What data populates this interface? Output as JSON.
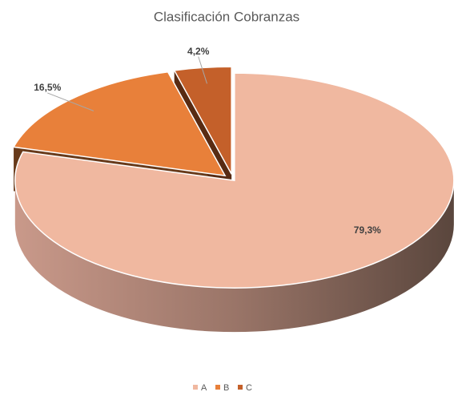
{
  "chart_data": {
    "type": "pie3d",
    "title": "Clasificación Cobranzas",
    "categories": [
      "A",
      "B",
      "C"
    ],
    "values": [
      79.3,
      16.5,
      4.2
    ],
    "value_labels": [
      "79,3%",
      "16,5%",
      "4,2%"
    ],
    "colors": [
      "#f0b8a0",
      "#e8803a",
      "#c4602a"
    ],
    "legend": "bottom"
  }
}
